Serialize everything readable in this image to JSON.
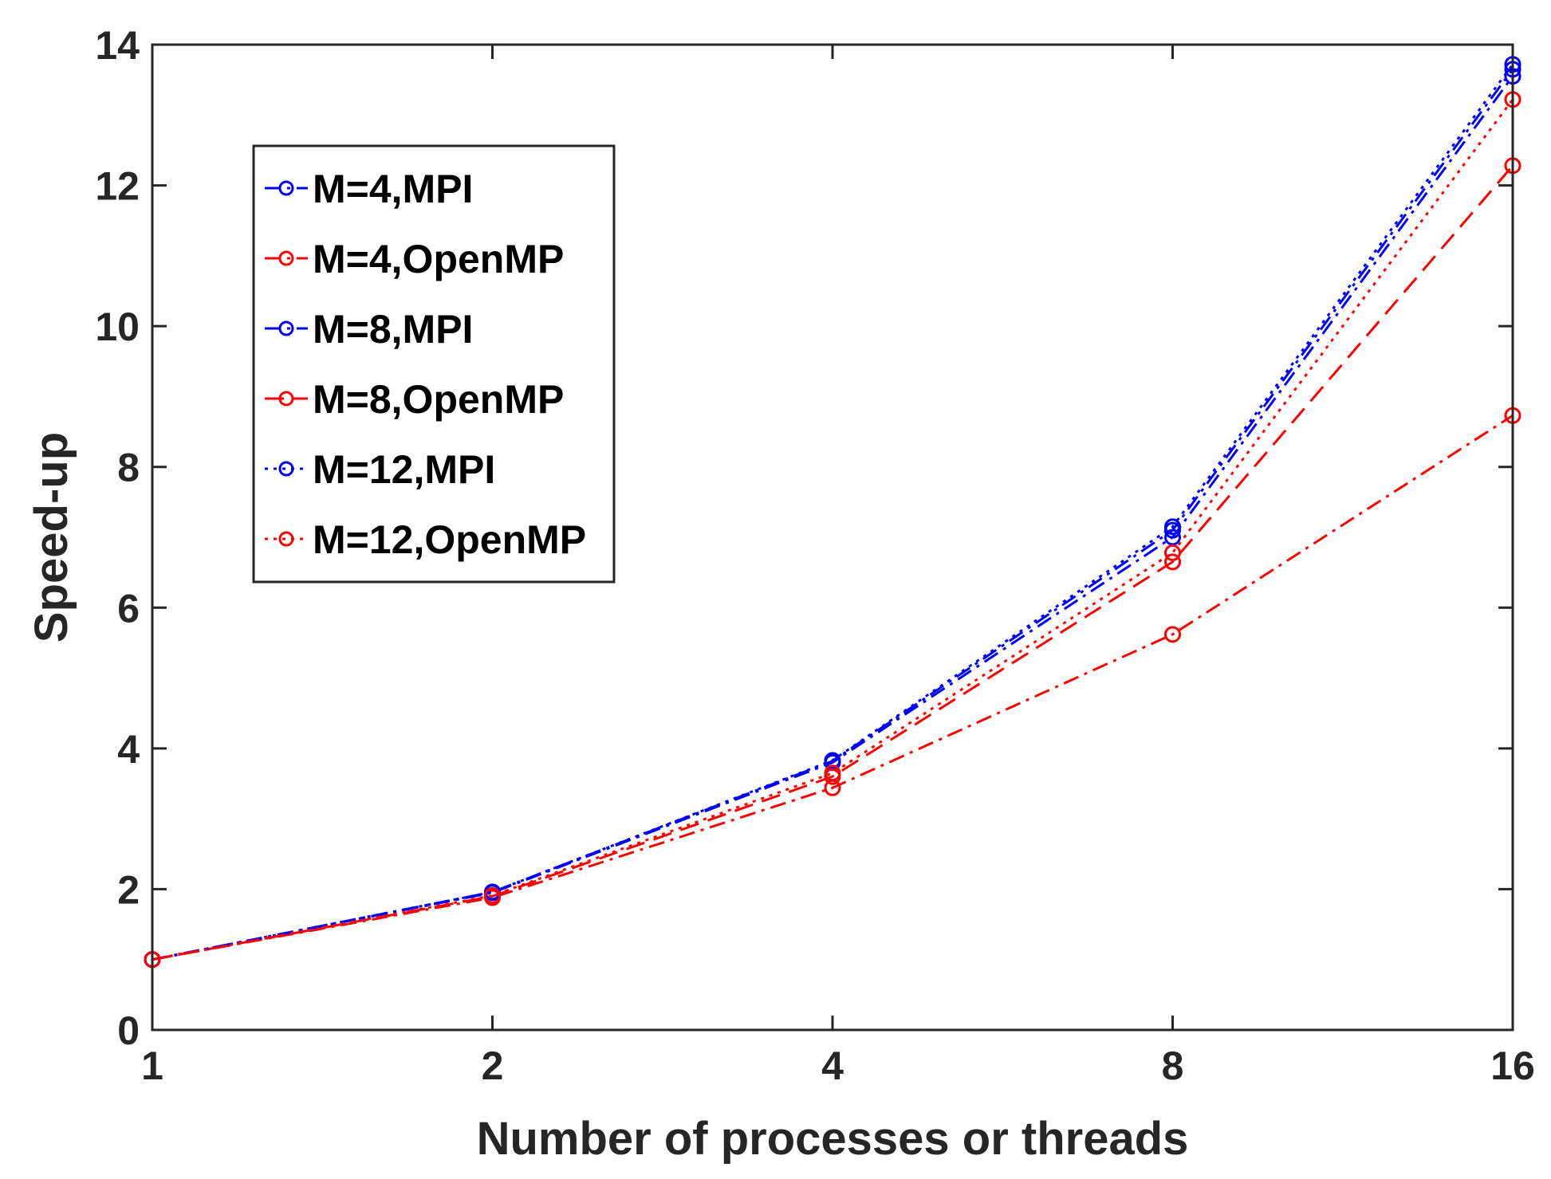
{
  "chart_data": {
    "type": "line",
    "title": "",
    "xlabel": "Number of processes or threads",
    "ylabel": "Speed-up",
    "x": [
      1,
      2,
      4,
      8,
      16
    ],
    "xscale": "log2",
    "xticks": [
      "1",
      "2",
      "4",
      "8",
      "16"
    ],
    "ylim": [
      0,
      14
    ],
    "yticks": [
      "0",
      "2",
      "4",
      "6",
      "8",
      "10",
      "12",
      "14"
    ],
    "grid": false,
    "legend_position": "upper-left",
    "series": [
      {
        "name": "M=4,MPI",
        "color": "#0000ff",
        "dash": "dashdot",
        "values": [
          1.0,
          1.96,
          3.82,
          7.1,
          13.65
        ]
      },
      {
        "name": "M=4,OpenMP",
        "color": "#ff0000",
        "dash": "dashdot",
        "values": [
          1.0,
          1.88,
          3.44,
          5.62,
          8.73
        ]
      },
      {
        "name": "M=8,MPI",
        "color": "#0000ff",
        "dash": "dashdot",
        "values": [
          1.0,
          1.95,
          3.8,
          7.0,
          13.55
        ]
      },
      {
        "name": "M=8,OpenMP",
        "color": "#ff0000",
        "dash": "dashed",
        "values": [
          1.0,
          1.9,
          3.6,
          6.65,
          12.28
        ]
      },
      {
        "name": "M=12,MPI",
        "color": "#0000ff",
        "dash": "dotted",
        "values": [
          1.0,
          1.96,
          3.83,
          7.15,
          13.72
        ]
      },
      {
        "name": "M=12,OpenMP",
        "color": "#ff0000",
        "dash": "dotted",
        "values": [
          1.0,
          1.91,
          3.65,
          6.78,
          13.22
        ]
      }
    ]
  }
}
